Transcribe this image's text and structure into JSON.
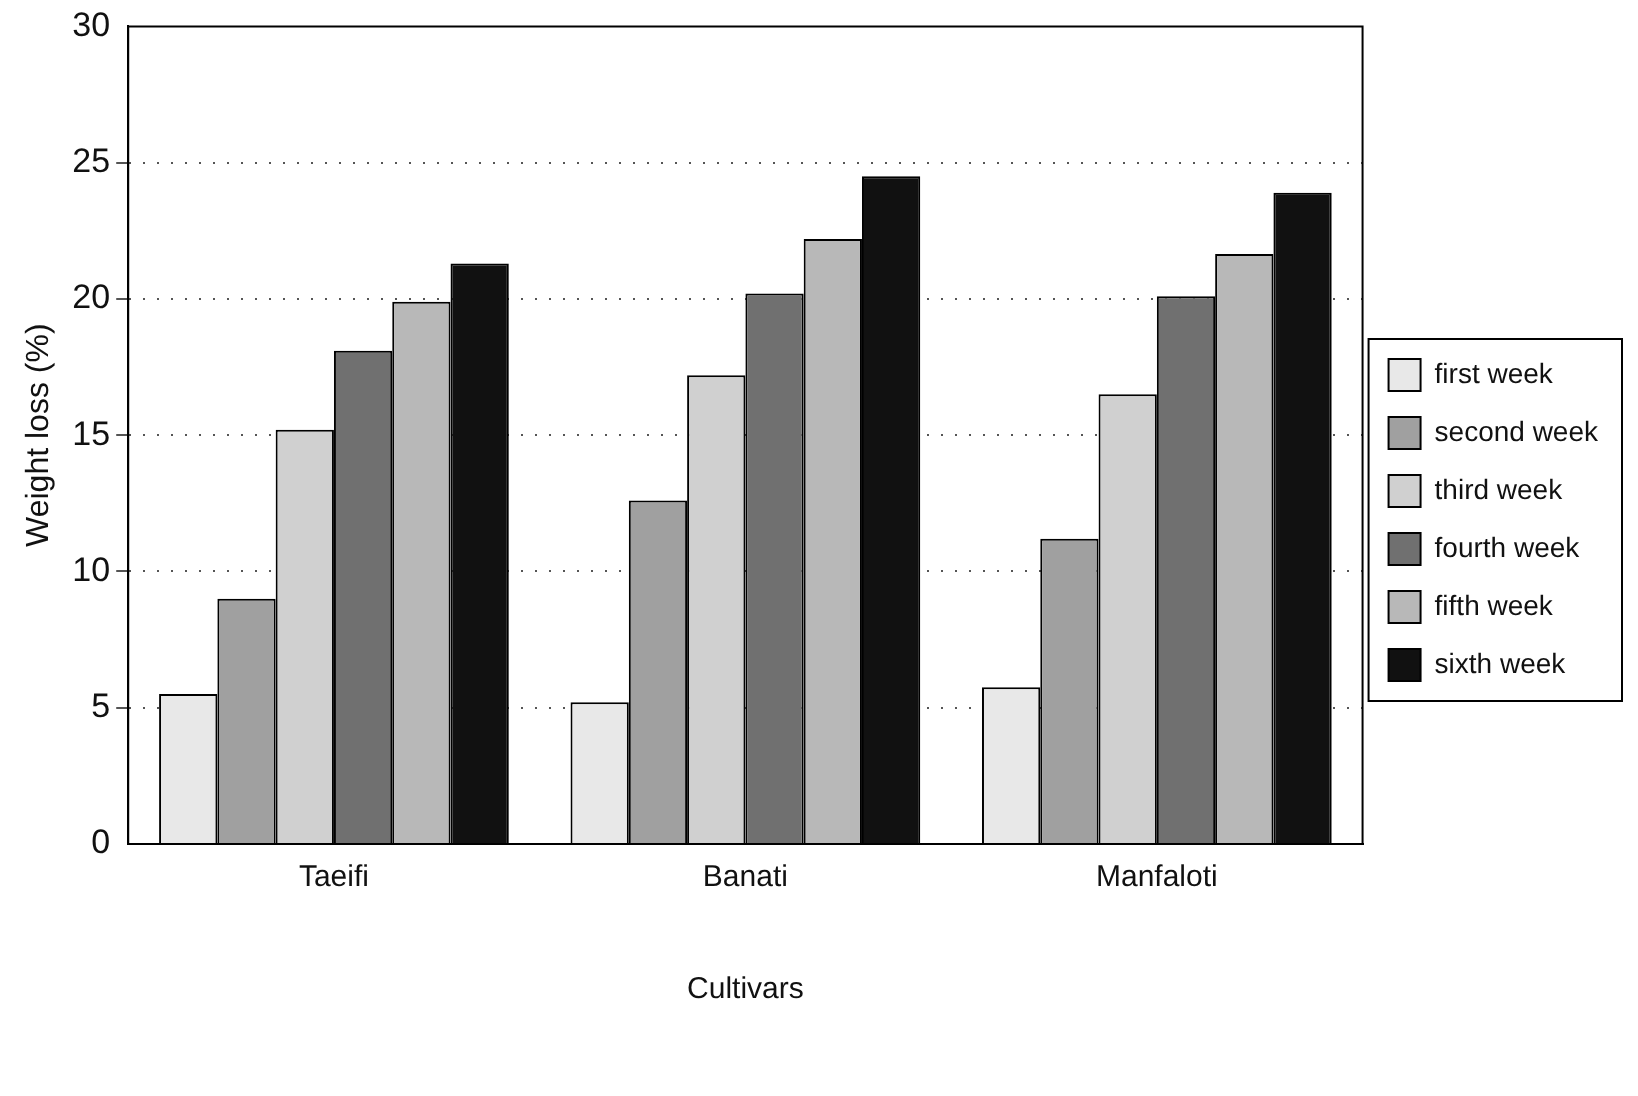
{
  "chart_data": {
    "type": "bar",
    "xlabel": "Cultivars",
    "ylabel": "Weight loss (%)",
    "categories": [
      "Taeifi",
      "Banati",
      "Manfaloti"
    ],
    "series": [
      {
        "name": "first week",
        "color": "#e8e8e8",
        "values": [
          5.5,
          5.2,
          5.75
        ]
      },
      {
        "name": "second week",
        "color": "#a0a0a0",
        "values": [
          9.0,
          12.6,
          11.2
        ]
      },
      {
        "name": "third week",
        "color": "#d0d0d0",
        "values": [
          15.2,
          17.2,
          16.5
        ]
      },
      {
        "name": "fourth week",
        "color": "#707070",
        "values": [
          18.1,
          20.2,
          20.1
        ]
      },
      {
        "name": "fifth week",
        "color": "#b8b8b8",
        "values": [
          19.9,
          22.2,
          21.65
        ]
      },
      {
        "name": "sixth week",
        "color": "#111111",
        "values": [
          21.3,
          24.5,
          23.9
        ]
      }
    ],
    "ylim": [
      0,
      30
    ],
    "yticks": [
      0,
      5,
      10,
      15,
      20,
      25,
      30
    ],
    "grid": "y",
    "legend": "right"
  }
}
